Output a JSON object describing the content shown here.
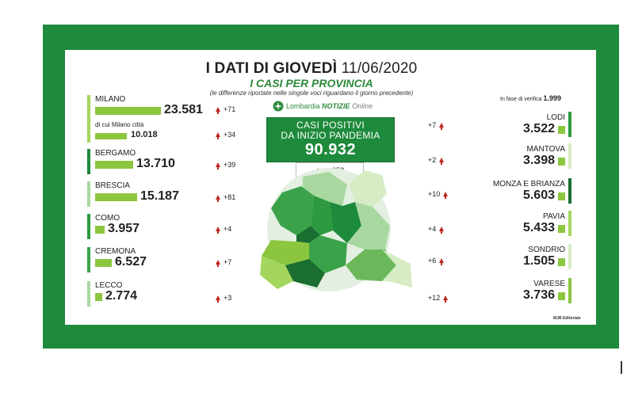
{
  "title": "I DATI DI GIOVEDÌ",
  "date": "11/06/2020",
  "subtitle": "I CASI PER PROVINCIA",
  "note": "(le differenze riportate nelle singole voci riguardano il giorno precedente)",
  "logo": {
    "brand": "Lombardia",
    "name": "NOTIZIE",
    "suffix": "Online",
    "icon": "lombardy-logo-icon"
  },
  "total": {
    "line1": "CASI POSITIVI",
    "line2": "DA INIZIO PANDEMIA",
    "value": "90.932",
    "delta": "+252"
  },
  "verify": {
    "label": "In fase di verifica",
    "value": "1.999"
  },
  "left": [
    {
      "name": "MILANO",
      "value": "23.581",
      "delta": "+71",
      "bar": 0.83,
      "color": "#a4d65e",
      "sub": {
        "label": "di cui Milano città",
        "value": "10.018",
        "delta": "+34"
      }
    },
    {
      "name": "BERGAMO",
      "value": "13.710",
      "delta": "+39",
      "bar": 0.48,
      "color": "#1e8a3b"
    },
    {
      "name": "BRESCIA",
      "value": "15.187",
      "delta": "+81",
      "bar": 0.53,
      "color": "#a8d8a0"
    },
    {
      "name": "COMO",
      "value": "3.957",
      "delta": "+4",
      "bar": 0.12,
      "color": "#2d9a3f"
    },
    {
      "name": "CREMONA",
      "value": "6.527",
      "delta": "+7",
      "bar": 0.21,
      "color": "#3aa34a"
    },
    {
      "name": "LECCO",
      "value": "2.774",
      "delta": "+3",
      "bar": 0.09,
      "color": "#a8d8a0"
    }
  ],
  "right": [
    {
      "name": "LODI",
      "value": "3.522",
      "delta": "+7",
      "bar": 0.11,
      "color": "#2d9a3f"
    },
    {
      "name": "MANTOVA",
      "value": "3.398",
      "delta": "+2",
      "bar": 0.11,
      "color": "#d6ecc4"
    },
    {
      "name": "MONZA E BRIANZA",
      "value": "5.603",
      "delta": "+10",
      "bar": 0.18,
      "color": "#1a6e30"
    },
    {
      "name": "PAVIA",
      "value": "5.433",
      "delta": "+4",
      "bar": 0.17,
      "color": "#a4d65e"
    },
    {
      "name": "SONDRIO",
      "value": "1.505",
      "delta": "+6",
      "bar": 0.05,
      "color": "#d6ecc4"
    },
    {
      "name": "VARESE",
      "value": "3.736",
      "delta": "+12",
      "bar": 0.12,
      "color": "#8cc63f"
    }
  ],
  "credit": "MJB Editoriale",
  "colors": {
    "frame": "#1e8a3b",
    "bar": "#8cc63f",
    "arrow": "#c0261d"
  }
}
